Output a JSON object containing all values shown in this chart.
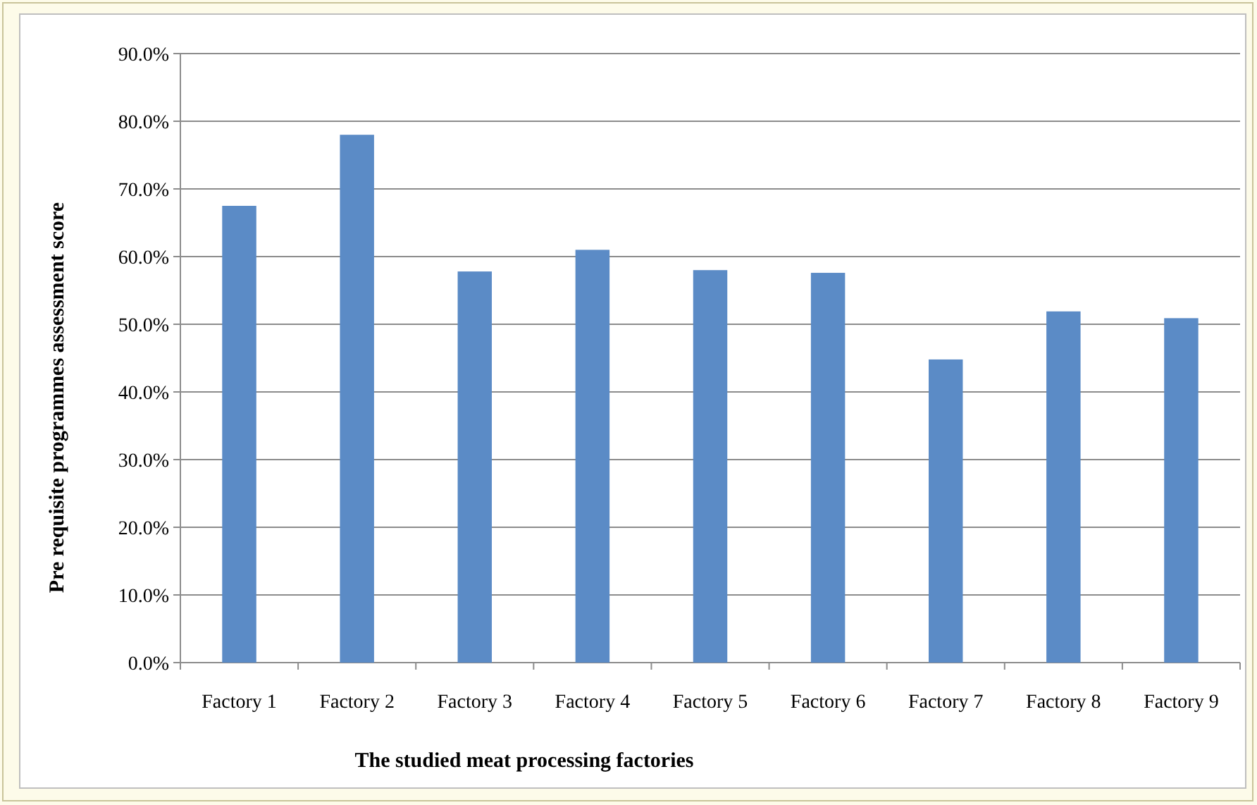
{
  "chart_data": {
    "type": "bar",
    "xlabel": "The studied meat processing factories",
    "ylabel": "Pre requisite programmes assessment score",
    "categories": [
      "Factory 1",
      "Factory 2",
      "Factory 3",
      "Factory 4",
      "Factory 5",
      "Factory 6",
      "Factory 7",
      "Factory 8",
      "Factory 9"
    ],
    "values": [
      67.5,
      78.0,
      57.8,
      61.0,
      58.0,
      57.6,
      44.8,
      51.9,
      50.9
    ],
    "color": "#5b8bc6",
    "ylim": [
      0,
      90
    ],
    "yticks": [
      {
        "value": 0,
        "label": "0.0%"
      },
      {
        "value": 10,
        "label": "10.0%"
      },
      {
        "value": 20,
        "label": "20.0%"
      },
      {
        "value": 30,
        "label": "30.0%"
      },
      {
        "value": 40,
        "label": "40.0%"
      },
      {
        "value": 50,
        "label": "50.0%"
      },
      {
        "value": 60,
        "label": "60.0%"
      },
      {
        "value": 70,
        "label": "70.0%"
      },
      {
        "value": 80,
        "label": "80.0%"
      },
      {
        "value": 90,
        "label": "90.0%"
      }
    ],
    "grid": "y"
  }
}
